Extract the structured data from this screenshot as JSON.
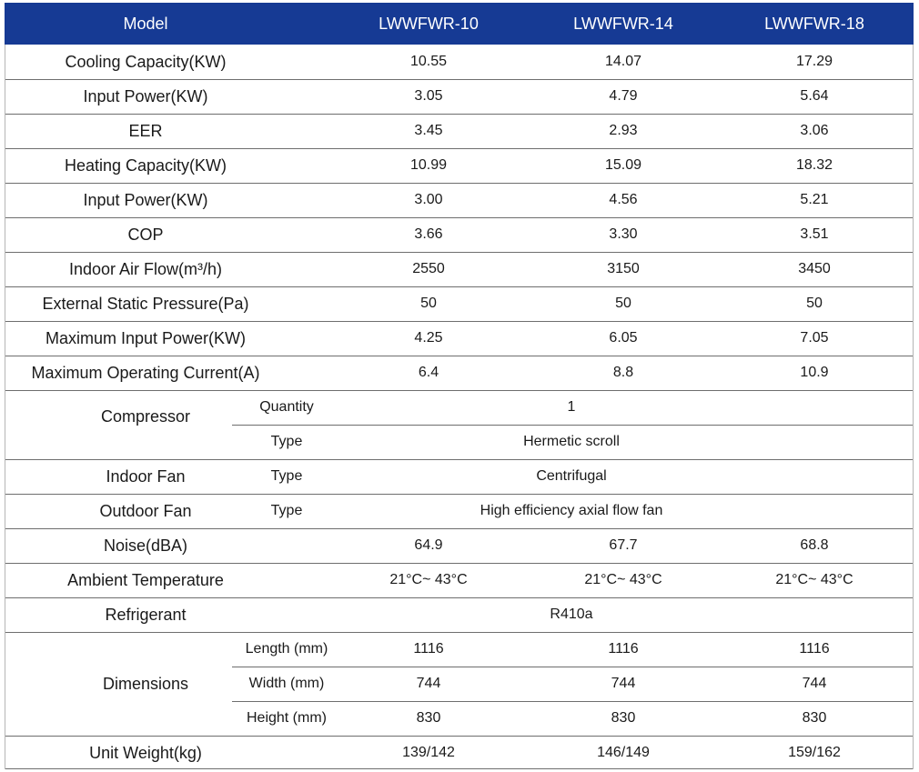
{
  "header": {
    "col0": "Model",
    "models": [
      "LWWFWR-10",
      "LWWFWR-14",
      "LWWFWR-18"
    ]
  },
  "rows": [
    {
      "label": "Cooling Capacity(KW)",
      "values": [
        "10.55",
        "14.07",
        "17.29"
      ]
    },
    {
      "label": "Input Power(KW)",
      "values": [
        "3.05",
        "4.79",
        "5.64"
      ]
    },
    {
      "label": "EER",
      "values": [
        "3.45",
        "2.93",
        "3.06"
      ]
    },
    {
      "label": "Heating Capacity(KW)",
      "values": [
        "10.99",
        "15.09",
        "18.32"
      ]
    },
    {
      "label": "Input Power(KW)",
      "values": [
        "3.00",
        "4.56",
        "5.21"
      ]
    },
    {
      "label": "COP",
      "values": [
        "3.66",
        "3.30",
        "3.51"
      ]
    },
    {
      "label": "Indoor Air Flow(m³/h)",
      "values": [
        "2550",
        "3150",
        "3450"
      ]
    },
    {
      "label": "External Static Pressure(Pa)",
      "values": [
        "50",
        "50",
        "50"
      ]
    },
    {
      "label": "Maximum Input Power(KW)",
      "values": [
        "4.25",
        "6.05",
        "7.05"
      ]
    },
    {
      "label": "Maximum Operating Current(A)",
      "values": [
        "6.4",
        "8.8",
        "10.9"
      ]
    }
  ],
  "compressor": {
    "label": "Compressor",
    "quantity_label": "Quantity",
    "quantity_value": "1",
    "type_label": "Type",
    "type_value": "Hermetic scroll"
  },
  "indoor_fan": {
    "label": "Indoor Fan",
    "type_label": "Type",
    "type_value": "Centrifugal"
  },
  "outdoor_fan": {
    "label": "Outdoor Fan",
    "type_label": "Type",
    "type_value": "High efficiency axial flow fan"
  },
  "noise": {
    "label": "Noise(dBA)",
    "values": [
      "64.9",
      "67.7",
      "68.8"
    ]
  },
  "ambient": {
    "label": "Ambient Temperature",
    "values": [
      "21°C~ 43°C",
      "21°C~ 43°C",
      "21°C~ 43°C"
    ]
  },
  "refrigerant": {
    "label": "Refrigerant",
    "value": "R410a"
  },
  "dimensions": {
    "label": "Dimensions",
    "length_label": "Length (mm)",
    "length": [
      "1116",
      "1116",
      "1116"
    ],
    "width_label": "Width (mm)",
    "width": [
      "744",
      "744",
      "744"
    ],
    "height_label": "Height (mm)",
    "height": [
      "830",
      "830",
      "830"
    ]
  },
  "unit_weight": {
    "label": "Unit Weight(kg)",
    "values": [
      "139/142",
      "146/149",
      "159/162"
    ]
  },
  "colors": {
    "header_bg": "#163a94",
    "header_text": "#ffffff",
    "rule": "#6e6e6e"
  }
}
